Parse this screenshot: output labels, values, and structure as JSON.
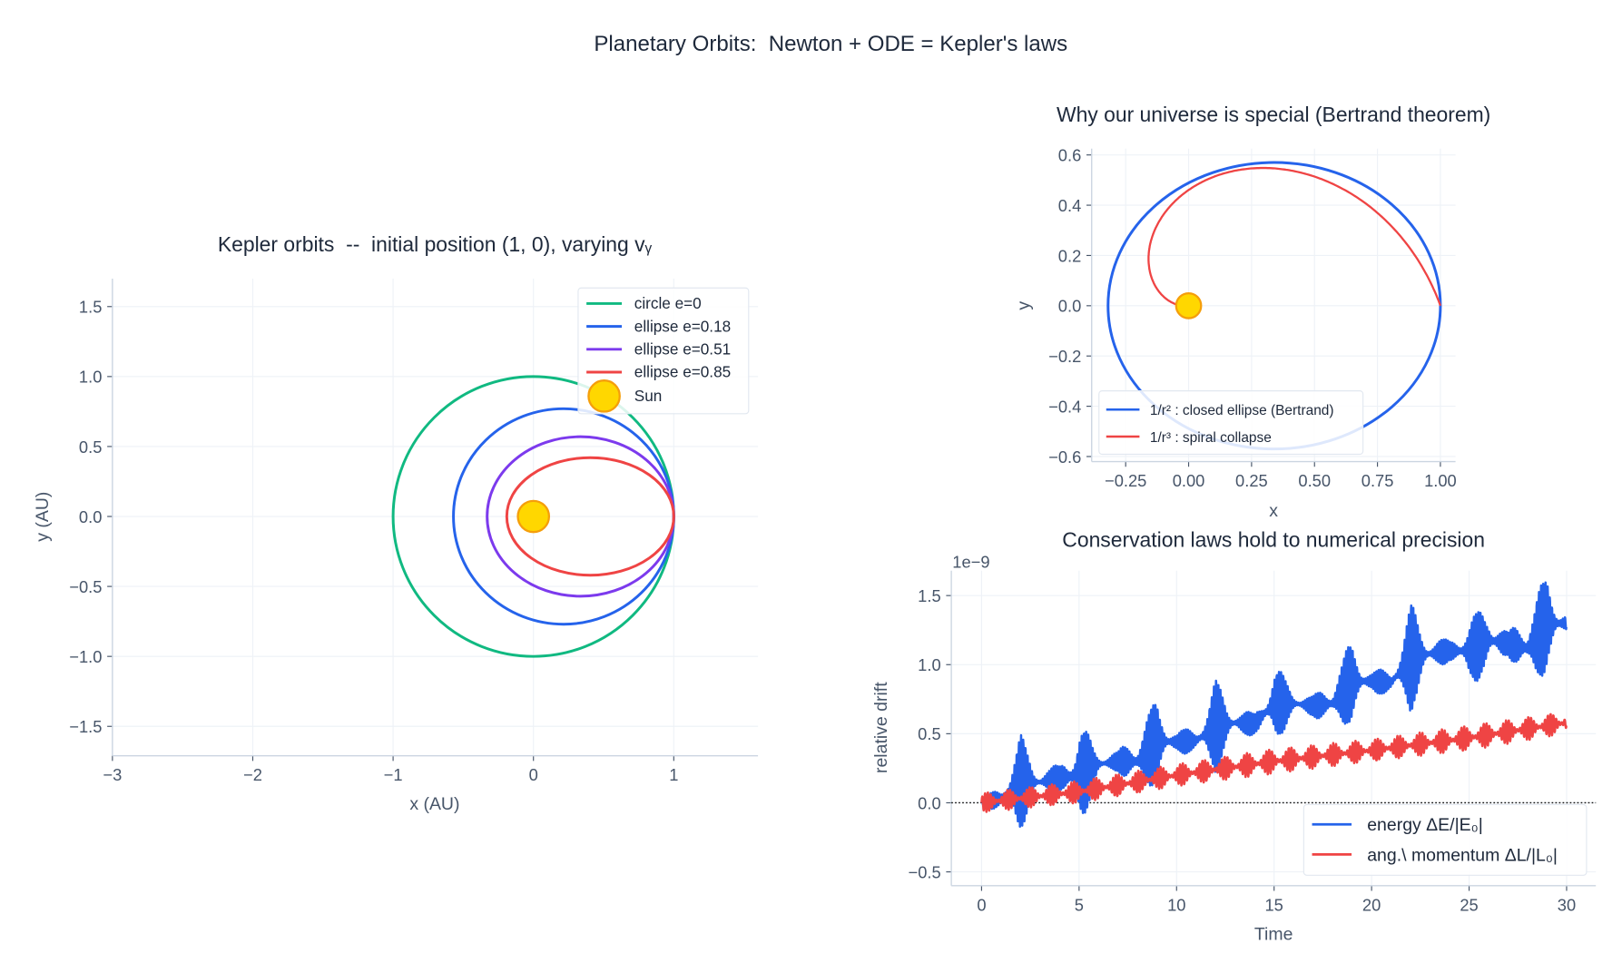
{
  "suptitle": "Planetary Orbits:  Newton + ODE = Kepler's laws",
  "colors": {
    "circle": "#10b981",
    "e018": "#2563eb",
    "e051": "#7c3aed",
    "e085": "#ef4444",
    "sun": "#ffd700",
    "sun_edge": "#f59e0b",
    "grid": "#eef2f7",
    "spine": "#cbd5e1"
  },
  "chart_data": [
    {
      "type": "line",
      "title": "Kepler orbits  --  initial position (1, 0), varying vᵧ",
      "xlabel": "x (AU)",
      "ylabel": "y (AU)",
      "xlim": [
        -3,
        1.6
      ],
      "ylim": [
        -1.71,
        1.7
      ],
      "xticks": [
        -3,
        -2,
        -1,
        0,
        1
      ],
      "xticklabels": [
        "−3",
        "−2",
        "−1",
        "0",
        "1"
      ],
      "yticks": [
        -1.5,
        -1.0,
        -0.5,
        0.0,
        0.5,
        1.0,
        1.5
      ],
      "yticklabels": [
        "−1.5",
        "−1.0",
        "−0.5",
        "0.0",
        "0.5",
        "1.0",
        "1.5"
      ],
      "grid": true,
      "legend": "top-right",
      "series": [
        {
          "name": "circle  e=0",
          "color": "#10b981",
          "center": [
            0,
            0
          ],
          "semi_x": 1.0,
          "semi_y": 1.0
        },
        {
          "name": "ellipse e=0.18",
          "color": "#2563eb",
          "center": [
            0.215,
            0
          ],
          "semi_x": 0.785,
          "semi_y": 0.77
        },
        {
          "name": "ellipse e=0.51",
          "color": "#7c3aed",
          "center": [
            0.335,
            0
          ],
          "semi_x": 0.665,
          "semi_y": 0.57
        },
        {
          "name": "ellipse e=0.85",
          "color": "#ef4444",
          "center": [
            0.405,
            0
          ],
          "semi_x": 0.595,
          "semi_y": 0.42
        }
      ],
      "sun": {
        "name": "Sun",
        "x": 0,
        "y": 0
      }
    },
    {
      "type": "line",
      "title": "Why our universe is special (Bertrand theorem)",
      "xlabel": "x",
      "ylabel": "y",
      "xlim": [
        -0.385,
        1.06
      ],
      "ylim": [
        -0.62,
        0.625
      ],
      "xticks": [
        -0.25,
        0,
        0.25,
        0.5,
        0.75,
        1.0
      ],
      "xticklabels": [
        "−0.25",
        "0.00",
        "0.25",
        "0.50",
        "0.75",
        "1.00"
      ],
      "yticks": [
        -0.6,
        -0.4,
        -0.2,
        0,
        0.2,
        0.4,
        0.6
      ],
      "yticklabels": [
        "−0.6",
        "−0.4",
        "−0.2",
        "0.0",
        "0.2",
        "0.4",
        "0.6"
      ],
      "grid": true,
      "legend": "bottom-left",
      "series": [
        {
          "name": "1/r² : closed ellipse (Bertrand)",
          "color": "#2563eb",
          "center": [
            0.34,
            0
          ],
          "semi_x": 0.66,
          "semi_y": 0.57
        },
        {
          "name": "1/r³ : spiral collapse",
          "color": "#ef4444",
          "start": [
            1,
            0
          ],
          "end": [
            0,
            0
          ]
        }
      ],
      "sun": {
        "x": 0,
        "y": 0
      }
    },
    {
      "type": "line",
      "title": "Conservation laws hold to numerical precision",
      "xlabel": "Time",
      "ylabel": "relative drift",
      "offset_label": "1e−9",
      "xlim": [
        -1.55,
        31.5
      ],
      "ylim": [
        -0.6,
        1.68
      ],
      "xticks": [
        0,
        5,
        10,
        15,
        20,
        25,
        30
      ],
      "xticklabels": [
        "0",
        "5",
        "10",
        "15",
        "20",
        "25",
        "30"
      ],
      "yticks": [
        -0.5,
        0,
        0.5,
        1.0,
        1.5
      ],
      "yticklabels": [
        "−0.5",
        "0.0",
        "0.5",
        "1.0",
        "1.5"
      ],
      "grid": true,
      "legend": "bottom-right",
      "hline": 0,
      "series": [
        {
          "name": "energy ΔE/|E₀|",
          "color": "#2563eb",
          "t": [
            0,
            1,
            2,
            3,
            4,
            5,
            6,
            7,
            8,
            9,
            10,
            11,
            12,
            13,
            14,
            15,
            16,
            17,
            18,
            19,
            20,
            21,
            22,
            23,
            24,
            25,
            26,
            27,
            28,
            29,
            30
          ],
          "mean": [
            0,
            0.03,
            0.15,
            0.15,
            0.18,
            0.2,
            0.28,
            0.3,
            0.3,
            0.45,
            0.44,
            0.45,
            0.55,
            0.58,
            0.57,
            0.72,
            0.72,
            0.7,
            0.72,
            0.88,
            0.88,
            0.87,
            1.05,
            1.08,
            1.1,
            1.1,
            1.18,
            1.15,
            1.12,
            1.3,
            1.3
          ],
          "amplitude": [
            0.02,
            0.1,
            0.35,
            0.08,
            0.1,
            0.4,
            0.1,
            0.07,
            0.25,
            0.3,
            0.08,
            0.1,
            0.35,
            0.1,
            0.08,
            0.3,
            0.1,
            0.07,
            0.2,
            0.3,
            0.08,
            0.1,
            0.4,
            0.12,
            0.08,
            0.25,
            0.25,
            0.08,
            0.3,
            0.35,
            0.08
          ]
        },
        {
          "name": "ang.\\ momentum ΔL/|L₀|",
          "color": "#ef4444",
          "t": [
            0,
            5,
            10,
            15,
            20,
            25,
            30
          ],
          "mean": [
            0,
            0.08,
            0.2,
            0.3,
            0.38,
            0.47,
            0.58
          ],
          "amplitude": [
            0.07,
            0.08,
            0.08,
            0.09,
            0.08,
            0.09,
            0.08
          ]
        }
      ]
    }
  ]
}
